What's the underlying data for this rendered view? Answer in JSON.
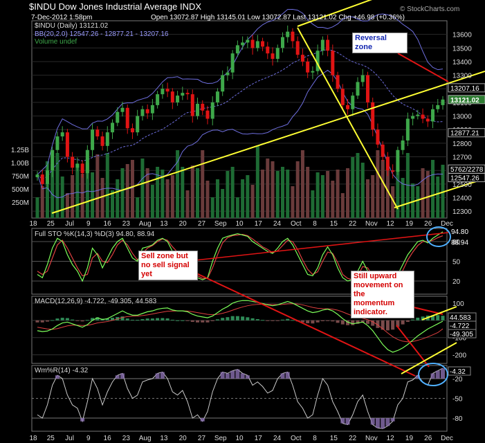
{
  "header": {
    "symbol_title": "$INDU Dow Jones Industrial Average INDX",
    "date_line": "7-Dec-2012 1:58pm",
    "ohlc_line": "Open 13072.87  High 13145.01  Low 13072.87  Last 13121.02  Chg +46.98 (+0.36%)",
    "copyright": "© StockCharts.com"
  },
  "legend": {
    "indu": "$INDU (Daily) 13121.02",
    "bb": "BB(20,2.0) 12547.26 - 12877.21 - 13207.16",
    "volume": "Volume undef"
  },
  "colors": {
    "up": "#3ea84a",
    "down": "#e01414",
    "bb": "#6f6fe0",
    "trend": "#ffff33",
    "red_line": "#e01414",
    "grid": "#2a2a2a",
    "circle": "#4fb0ff"
  },
  "annotations": {
    "reversal_zone": "Reversal\nzone",
    "sell_zone": "Sell zone but\nno sell signal\nyet",
    "still_upward": "Still upward\nmovement on\nthe\nmomentum\nindicator."
  },
  "x_axis_labels": [
    "18",
    "25",
    "Jul",
    "9",
    "16",
    "23",
    "Aug",
    "13",
    "20",
    "27",
    "Sep",
    "10",
    "17",
    "24",
    "Oct",
    "8",
    "15",
    "22",
    "Nov",
    "12",
    "19",
    "26",
    "Dec"
  ],
  "chart_data": [
    {
      "type": "candlestick",
      "title": "$INDU (Daily)",
      "ylim": [
        12250,
        13700
      ],
      "yticks": [
        12300,
        12400,
        12500,
        12600,
        12700,
        12800,
        12900,
        13000,
        13100,
        13200,
        13300,
        13400,
        13500,
        13600
      ],
      "price_tags": [
        {
          "label": "13207.16",
          "value": 13207.16,
          "kind": "bb"
        },
        {
          "label": "13121.02",
          "value": 13121.02,
          "kind": "last"
        },
        {
          "label": "12877.21",
          "value": 12877.21,
          "kind": "bb"
        },
        {
          "label": "12547.26",
          "value": 12547.26,
          "kind": "bb"
        },
        {
          "label": "5762/2278",
          "value": 12610,
          "kind": "vol"
        }
      ],
      "volume_axis": [
        "1.25B",
        "1.00B",
        "750M",
        "500M",
        "250M"
      ],
      "closes": [
        12570,
        12500,
        12600,
        12750,
        12850,
        12880,
        12700,
        12620,
        12650,
        12580,
        12750,
        12900,
        12850,
        12780,
        12880,
        12950,
        13030,
        13060,
        12910,
        12880,
        13000,
        13050,
        13020,
        13080,
        13160,
        13200,
        13180,
        13100,
        13150,
        13170,
        13160,
        13000,
        13090,
        13040,
        12980,
        13100,
        13180,
        13300,
        13320,
        13460,
        13520,
        13540,
        13560,
        13500,
        13550,
        13510,
        13460,
        13420,
        13500,
        13580,
        13620,
        13550,
        13450,
        13400,
        13320,
        13330,
        13480,
        13560,
        13480,
        13300,
        13200,
        13080,
        13050,
        13150,
        13250,
        13300,
        13100,
        12900,
        12790,
        12700,
        12600,
        12590,
        12750,
        12820,
        12980,
        13000,
        13010,
        12980,
        12960,
        13050,
        13080,
        13121
      ],
      "ranges": {
        "ylim": [
          12250,
          13700
        ]
      }
    },
    {
      "type": "line",
      "title": "Full STO %K(14,3) %D(3)",
      "readout": "Full STO %K(14,3) %D(3) 94.80, 88.94",
      "ylim": [
        0,
        100
      ],
      "yticks": [
        20,
        50,
        80
      ],
      "last_values": [
        "94.80",
        "88.94"
      ],
      "k": [
        30,
        25,
        45,
        70,
        85,
        80,
        60,
        45,
        35,
        20,
        40,
        70,
        60,
        40,
        55,
        70,
        80,
        85,
        70,
        55,
        50,
        70,
        72,
        75,
        82,
        85,
        80,
        65,
        60,
        62,
        50,
        30,
        25,
        22,
        25,
        50,
        70,
        85,
        88,
        90,
        92,
        90,
        88,
        80,
        75,
        70,
        65,
        62,
        70,
        80,
        85,
        75,
        60,
        45,
        30,
        28,
        40,
        60,
        72,
        60,
        40,
        25,
        20,
        22,
        35,
        50,
        35,
        22,
        15,
        10,
        12,
        15,
        30,
        45,
        60,
        70,
        80,
        82,
        78,
        85,
        90,
        94.8
      ],
      "d": [
        35,
        30,
        35,
        55,
        75,
        82,
        70,
        55,
        40,
        28,
        30,
        55,
        62,
        50,
        48,
        60,
        75,
        82,
        75,
        62,
        52,
        62,
        70,
        74,
        80,
        84,
        82,
        72,
        64,
        62,
        55,
        40,
        28,
        24,
        24,
        40,
        60,
        78,
        86,
        89,
        90,
        91,
        89,
        84,
        78,
        72,
        68,
        63,
        66,
        74,
        82,
        80,
        68,
        52,
        38,
        30,
        34,
        50,
        64,
        62,
        48,
        30,
        24,
        22,
        28,
        42,
        40,
        28,
        18,
        13,
        12,
        14,
        22,
        36,
        52,
        64,
        74,
        80,
        80,
        82,
        86,
        88.94
      ]
    },
    {
      "type": "line",
      "title": "MACD(12,26,9)",
      "readout": "MACD(12,26,9) -4.722, -49.305, 44.583",
      "ylim": [
        -250,
        140
      ],
      "yticks": [
        100,
        0,
        -100,
        -200
      ],
      "last_values": [
        "44.583",
        "-4.722",
        "-49.305"
      ],
      "macd": [
        -60,
        -65,
        -62,
        -50,
        -30,
        -15,
        -10,
        -20,
        -30,
        -40,
        -25,
        0,
        15,
        5,
        10,
        25,
        40,
        55,
        40,
        30,
        30,
        40,
        50,
        55,
        65,
        70,
        72,
        60,
        55,
        55,
        50,
        35,
        25,
        20,
        15,
        25,
        45,
        65,
        80,
        100,
        110,
        115,
        115,
        110,
        105,
        98,
        90,
        85,
        90,
        100,
        110,
        100,
        85,
        70,
        55,
        45,
        50,
        60,
        65,
        55,
        35,
        10,
        -10,
        -20,
        -15,
        -10,
        -30,
        -60,
        -100,
        -140,
        -170,
        -185,
        -175,
        -160,
        -140,
        -115,
        -90,
        -70,
        -50,
        -35,
        -20,
        -4.7
      ],
      "signal": [
        -40,
        -45,
        -50,
        -52,
        -48,
        -40,
        -32,
        -28,
        -28,
        -30,
        -29,
        -23,
        -15,
        -11,
        -7,
        0,
        8,
        17,
        22,
        24,
        25,
        28,
        32,
        37,
        43,
        48,
        53,
        54,
        55,
        55,
        54,
        50,
        45,
        40,
        35,
        33,
        35,
        41,
        49,
        59,
        69,
        78,
        85,
        90,
        93,
        94,
        93,
        92,
        91,
        93,
        96,
        97,
        95,
        90,
        83,
        75,
        70,
        68,
        67,
        65,
        59,
        49,
        37,
        26,
        18,
        12,
        4,
        -8,
        -26,
        -49,
        -73,
        -95,
        -111,
        -121,
        -125,
        -123,
        -116,
        -107,
        -96,
        -84,
        -71,
        -49.3
      ]
    },
    {
      "type": "line",
      "title": "Wm%R(14)",
      "readout": "Wm%R(14) -4.32",
      "ylim": [
        -100,
        0
      ],
      "yticks": [
        -20,
        -50,
        -80
      ],
      "last_values": [
        "-4.32"
      ],
      "values": [
        -75,
        -80,
        -60,
        -30,
        -15,
        -20,
        -45,
        -60,
        -65,
        -85,
        -55,
        -20,
        -35,
        -60,
        -40,
        -25,
        -15,
        -12,
        -35,
        -50,
        -45,
        -25,
        -22,
        -20,
        -12,
        -10,
        -20,
        -40,
        -45,
        -38,
        -55,
        -80,
        -75,
        -85,
        -70,
        -40,
        -20,
        -10,
        -12,
        -8,
        -6,
        -12,
        -15,
        -30,
        -25,
        -32,
        -42,
        -38,
        -20,
        -12,
        -10,
        -30,
        -55,
        -65,
        -80,
        -75,
        -45,
        -20,
        -30,
        -55,
        -70,
        -88,
        -90,
        -75,
        -55,
        -45,
        -70,
        -90,
        -95,
        -96,
        -92,
        -85,
        -60,
        -50,
        -25,
        -22,
        -15,
        -25,
        -30,
        -12,
        -8,
        -4.32
      ]
    }
  ]
}
